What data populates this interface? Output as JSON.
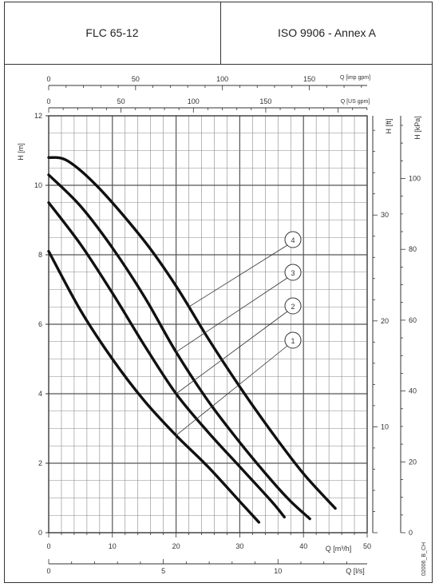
{
  "header": {
    "left_title": "FLC 65-12",
    "right_title": "ISO 9906 - Annex A"
  },
  "chart_data": {
    "type": "line",
    "axes": {
      "h_m": {
        "label": "H [m]",
        "range": [
          0,
          12
        ],
        "ticks": [
          "0",
          "2",
          "4",
          "6",
          "8",
          "10",
          "12"
        ]
      },
      "h_ft": {
        "label": "H [ft]",
        "range": [
          0,
          39.37
        ],
        "ticks": [
          "10",
          "20",
          "30"
        ]
      },
      "h_kpa": {
        "label": "H [kPa]",
        "range": [
          0,
          117.7
        ],
        "ticks": [
          "0",
          "20",
          "40",
          "60",
          "80",
          "100"
        ]
      },
      "q_m3h": {
        "label": "Q [m³/h]",
        "range": [
          0,
          50
        ],
        "ticks": [
          "0",
          "10",
          "20",
          "30",
          "40",
          "50"
        ]
      },
      "q_ls": {
        "label": "Q [l/s]",
        "range": [
          0,
          13.89
        ],
        "ticks": [
          "0",
          "5",
          "10"
        ]
      },
      "q_us": {
        "label": "Q [US gpm]",
        "range": [
          0,
          220.1
        ],
        "ticks": [
          "0",
          "50",
          "100",
          "150"
        ]
      },
      "q_imp": {
        "label": "Q [imp gpm]",
        "range": [
          0,
          183.3
        ],
        "ticks": [
          "0",
          "50",
          "100",
          "150"
        ]
      }
    },
    "grid": true,
    "series": [
      {
        "name": "1",
        "points": [
          [
            0,
            8.1
          ],
          [
            5,
            6.4
          ],
          [
            10,
            5.0
          ],
          [
            15,
            3.8
          ],
          [
            20,
            2.8
          ],
          [
            25,
            1.9
          ],
          [
            30,
            0.9
          ],
          [
            33,
            0.3
          ]
        ]
      },
      {
        "name": "2",
        "points": [
          [
            0,
            9.5
          ],
          [
            5,
            8.3
          ],
          [
            10,
            6.9
          ],
          [
            15,
            5.4
          ],
          [
            20,
            4.0
          ],
          [
            25,
            2.9
          ],
          [
            30,
            1.9
          ],
          [
            35,
            0.9
          ],
          [
            37,
            0.45
          ]
        ]
      },
      {
        "name": "3",
        "points": [
          [
            0,
            10.3
          ],
          [
            5,
            9.4
          ],
          [
            10,
            8.2
          ],
          [
            15,
            6.8
          ],
          [
            20,
            5.2
          ],
          [
            25,
            3.8
          ],
          [
            30,
            2.6
          ],
          [
            35,
            1.5
          ],
          [
            38,
            0.9
          ],
          [
            41,
            0.4
          ]
        ]
      },
      {
        "name": "4",
        "points": [
          [
            0,
            10.8
          ],
          [
            3,
            10.7
          ],
          [
            8,
            9.9
          ],
          [
            15,
            8.4
          ],
          [
            20,
            7.1
          ],
          [
            25,
            5.6
          ],
          [
            30,
            4.2
          ],
          [
            35,
            2.9
          ],
          [
            40,
            1.7
          ],
          [
            45,
            0.7
          ]
        ]
      }
    ],
    "code_label": "02006_B_CH"
  }
}
